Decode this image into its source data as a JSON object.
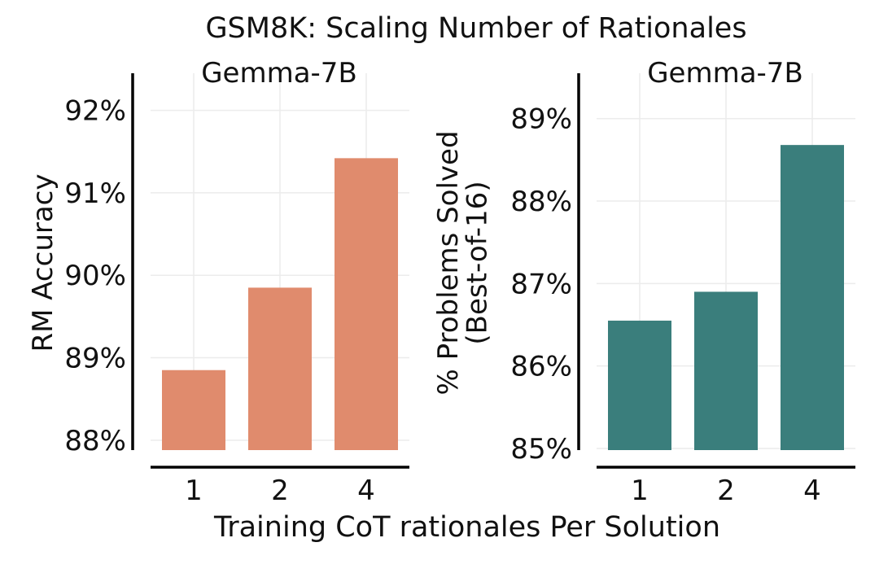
{
  "title": "GSM8K: Scaling Number of Rationales",
  "xlabel": "Training CoT rationales Per Solution",
  "chart_data": [
    {
      "type": "bar",
      "title": "Gemma-7B",
      "ylabel": "RM Accuracy",
      "categories": [
        "1",
        "2",
        "4"
      ],
      "values": [
        88.85,
        89.85,
        91.42
      ],
      "ylim": [
        87.88,
        92.45
      ],
      "yticks": [
        88,
        89,
        90,
        91,
        92
      ],
      "ytick_labels": [
        "88%",
        "89%",
        "90%",
        "91%",
        "92%"
      ],
      "color": "#E08B6D",
      "grid": true
    },
    {
      "type": "bar",
      "title": "Gemma-7B",
      "ylabel": "% Problems Solved\n(Best-of-16)",
      "categories": [
        "1",
        "2",
        "4"
      ],
      "values": [
        86.55,
        86.9,
        88.68
      ],
      "ylim": [
        84.98,
        89.55
      ],
      "yticks": [
        85,
        86,
        87,
        88,
        89
      ],
      "ytick_labels": [
        "85%",
        "86%",
        "87%",
        "88%",
        "89%"
      ],
      "color": "#3A7E7C",
      "grid": true
    }
  ]
}
